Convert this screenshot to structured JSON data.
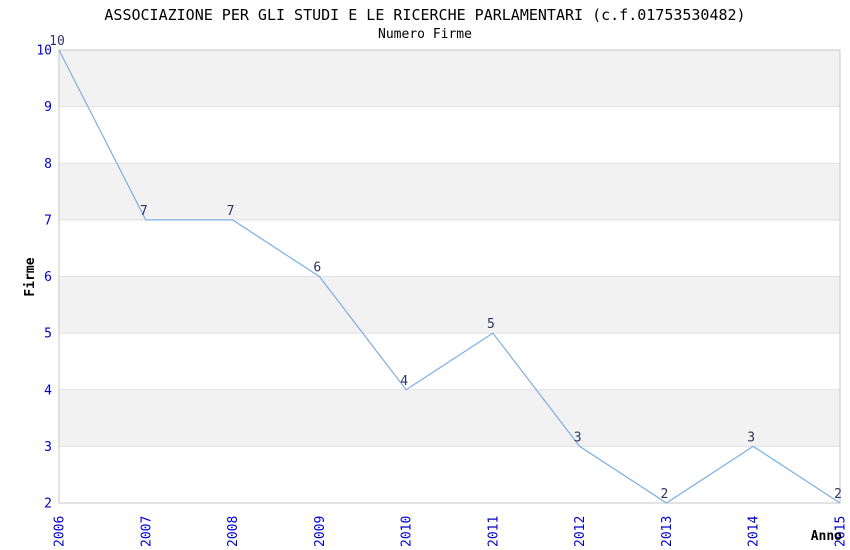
{
  "chart_data": {
    "type": "line",
    "title": "ASSOCIAZIONE PER GLI STUDI E LE RICERCHE PARLAMENTARI (c.f.01753530482)",
    "subtitle": "Numero Firme",
    "xlabel": "Anno",
    "ylabel": "Firme",
    "x": [
      "2006",
      "2007",
      "2008",
      "2009",
      "2010",
      "2011",
      "2012",
      "2013",
      "2014",
      "2015"
    ],
    "values": [
      10,
      7,
      7,
      6,
      4,
      5,
      3,
      2,
      3,
      2
    ],
    "ylim": [
      2,
      10
    ],
    "yticks": [
      2,
      3,
      4,
      5,
      6,
      7,
      8,
      9,
      10
    ],
    "grid": true,
    "legend": false,
    "point_labels": true,
    "colors": {
      "line": "#7dafe3",
      "axis_tick_label": "#0000cc",
      "point_label": "#333366",
      "band": "#f2f2f2",
      "gridline": "#e0e0e0",
      "plot_border": "#c8c8c8",
      "text": "#000000",
      "background": "#ffffff"
    }
  }
}
